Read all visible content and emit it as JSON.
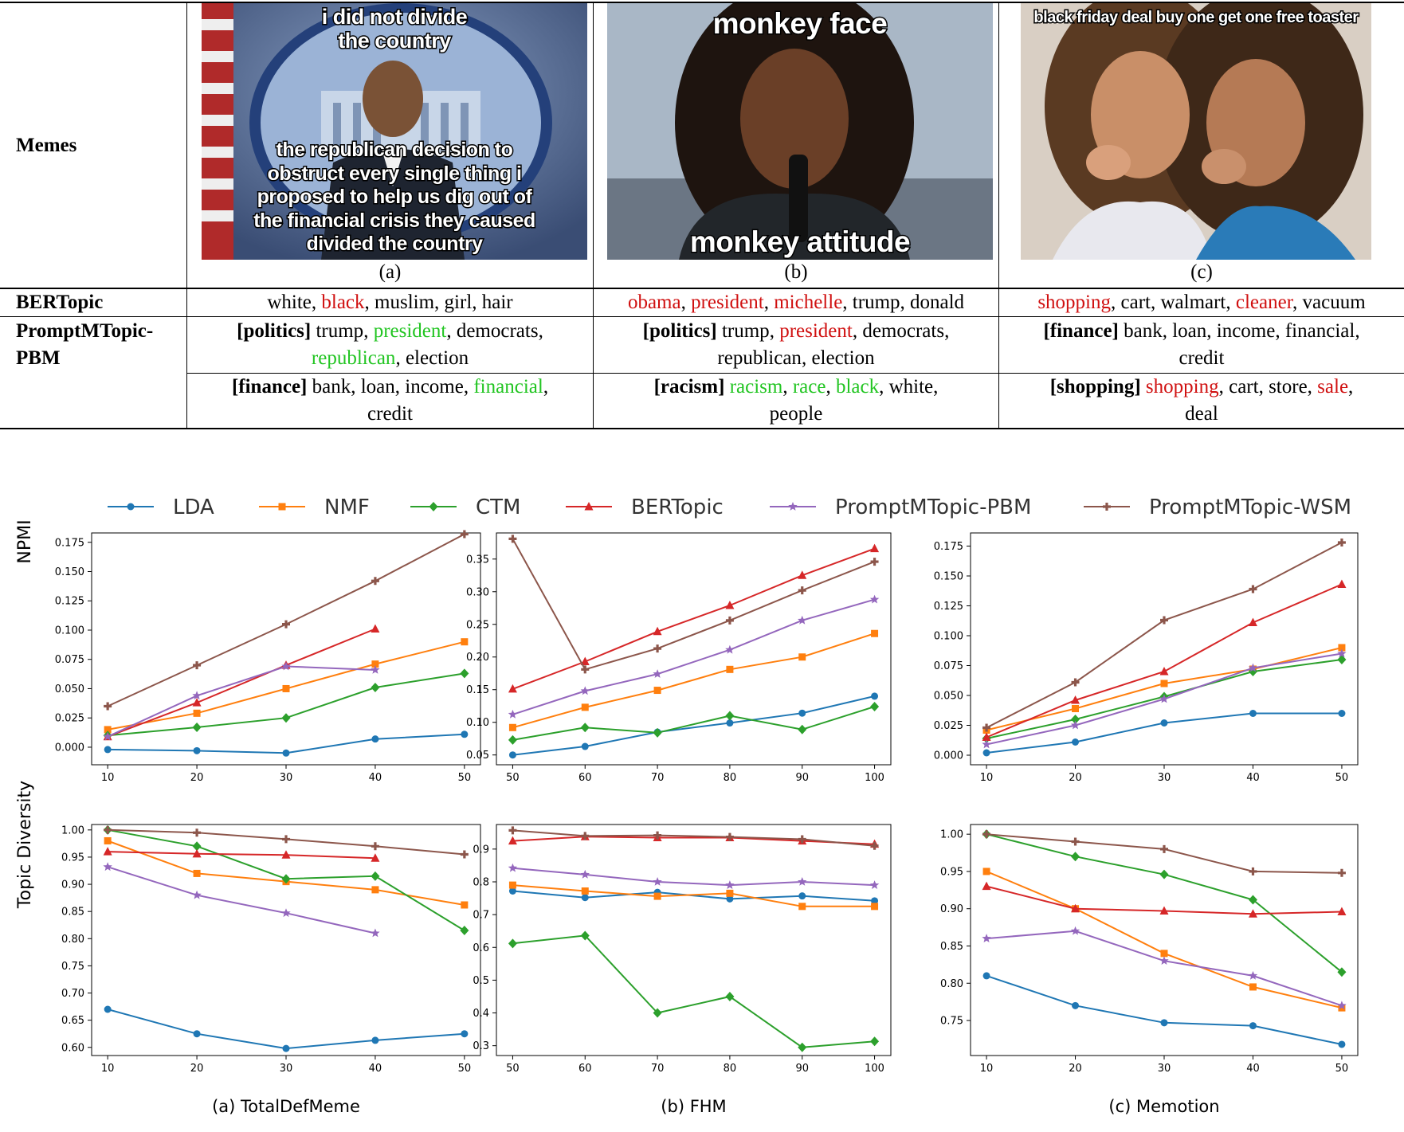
{
  "table": {
    "row_headers": {
      "memes": "Memes",
      "bertopic": "BERTopic",
      "pbm_line1": "PromptMTopic-",
      "pbm_line2": "PBM"
    },
    "memes": [
      {
        "label": "(a)",
        "caption_top": [
          "i did not divide",
          "the country"
        ],
        "caption_bottom": [
          "the republican decision to",
          "obstruct every single thing i",
          "proposed to help us dig out of",
          "the financial crisis they caused",
          "divided the country"
        ]
      },
      {
        "label": "(b)",
        "caption_top": [
          "monkey face"
        ],
        "caption_bottom": [
          "monkey attitude"
        ]
      },
      {
        "label": "(c)",
        "caption_top": [
          "black friday deal buy one get one free toaster"
        ],
        "caption_bottom": []
      }
    ],
    "bertopic": [
      [
        {
          "t": "white"
        },
        {
          "t": "black",
          "c": "red"
        },
        {
          "t": "muslim"
        },
        {
          "t": "girl"
        },
        {
          "t": "hair"
        }
      ],
      [
        {
          "t": "obama",
          "c": "red"
        },
        {
          "t": "president",
          "c": "red"
        },
        {
          "t": "michelle",
          "c": "red"
        },
        {
          "t": "trump"
        },
        {
          "t": "donald"
        }
      ],
      [
        {
          "t": "shopping",
          "c": "red"
        },
        {
          "t": "cart"
        },
        {
          "t": "walmart"
        },
        {
          "t": "cleaner",
          "c": "red"
        },
        {
          "t": "vacuum"
        }
      ]
    ],
    "pbm_row1": [
      {
        "tag": "[politics]",
        "words": [
          {
            "t": "trump"
          },
          {
            "t": "president",
            "c": "green"
          },
          {
            "t": "democrats"
          },
          {
            "t": "republican",
            "c": "green",
            "br": true
          },
          {
            "t": "election"
          }
        ]
      },
      {
        "tag": "[politics]",
        "words": [
          {
            "t": "trump"
          },
          {
            "t": "president",
            "c": "red"
          },
          {
            "t": "democrats"
          },
          {
            "t": "republican",
            "br": true
          },
          {
            "t": "election"
          }
        ]
      },
      {
        "tag": "[finance]",
        "words": [
          {
            "t": "bank"
          },
          {
            "t": "loan"
          },
          {
            "t": "income"
          },
          {
            "t": "financial"
          },
          {
            "t": "credit",
            "br": true
          }
        ]
      }
    ],
    "pbm_row2": [
      {
        "tag": "[finance]",
        "words": [
          {
            "t": "bank"
          },
          {
            "t": "loan"
          },
          {
            "t": "income"
          },
          {
            "t": "financial",
            "c": "green"
          },
          {
            "t": "credit",
            "br": true
          }
        ]
      },
      {
        "tag": "[racism]",
        "words": [
          {
            "t": "racism",
            "c": "green"
          },
          {
            "t": "race",
            "c": "green"
          },
          {
            "t": "black",
            "c": "green"
          },
          {
            "t": "white"
          },
          {
            "t": "people",
            "br": true
          }
        ]
      },
      {
        "tag": "[shopping]",
        "words": [
          {
            "t": "shopping",
            "c": "red"
          },
          {
            "t": "cart"
          },
          {
            "t": "store"
          },
          {
            "t": "sale",
            "c": "red"
          },
          {
            "t": "deal",
            "br": true
          }
        ]
      }
    ]
  },
  "chart_data": {
    "type": "line",
    "legend": {
      "placement": "top",
      "entries": [
        "LDA",
        "NMF",
        "CTM",
        "BERTopic",
        "PromptMTopic-PBM",
        "PromptMTopic-WSM"
      ]
    },
    "colors": {
      "LDA": "#1f77b4",
      "NMF": "#ff7f0e",
      "CTM": "#2ca02c",
      "BERTopic": "#d62728",
      "PromptMTopic-PBM": "#9467bd",
      "PromptMTopic-WSM": "#8c564b"
    },
    "markers": {
      "LDA": "circle",
      "NMF": "square",
      "CTM": "diamond",
      "BERTopic": "triangle",
      "PromptMTopic-PBM": "star",
      "PromptMTopic-WSM": "plus"
    },
    "ylabels": {
      "npmi": "NPMI",
      "td": "Topic Diversity"
    },
    "panels": [
      {
        "caption": "(a) TotalDefMeme",
        "x": [
          10,
          20,
          30,
          40,
          50
        ],
        "npmi": {
          "ylim": [
            -0.015,
            0.183
          ],
          "yticks": [
            "0.000",
            "0.025",
            "0.050",
            "0.075",
            "0.100",
            "0.125",
            "0.150",
            "0.175"
          ],
          "series": {
            "LDA": [
              -0.002,
              -0.003,
              -0.005,
              0.007,
              0.011
            ],
            "NMF": [
              0.015,
              0.029,
              0.05,
              0.071,
              0.09
            ],
            "CTM": [
              0.01,
              0.017,
              0.025,
              0.051,
              0.063
            ],
            "BERTopic": [
              0.009,
              0.038,
              0.07,
              0.101,
              null
            ],
            "PromptMTopic-PBM": [
              0.009,
              0.044,
              0.069,
              0.066,
              null
            ],
            "PromptMTopic-WSM": [
              0.035,
              0.07,
              0.105,
              0.142,
              0.182
            ]
          }
        },
        "td": {
          "ylim": [
            0.585,
            1.01
          ],
          "yticks": [
            "0.60",
            "0.65",
            "0.70",
            "0.75",
            "0.80",
            "0.85",
            "0.90",
            "0.95",
            "1.00"
          ],
          "series": {
            "LDA": [
              0.67,
              0.625,
              0.598,
              0.613,
              0.625
            ],
            "NMF": [
              0.98,
              0.92,
              0.905,
              0.89,
              0.862
            ],
            "CTM": [
              1.0,
              0.97,
              0.91,
              0.915,
              0.815
            ],
            "BERTopic": [
              0.96,
              0.956,
              0.954,
              0.948,
              null
            ],
            "PromptMTopic-PBM": [
              0.932,
              0.88,
              0.847,
              0.81,
              null
            ],
            "PromptMTopic-WSM": [
              1.0,
              0.995,
              0.983,
              0.97,
              0.955
            ]
          }
        }
      },
      {
        "caption": "(b) FHM",
        "x": [
          50,
          60,
          70,
          80,
          90,
          100
        ],
        "npmi": {
          "ylim": [
            0.035,
            0.39
          ],
          "yticks": [
            "0.05",
            "0.10",
            "0.15",
            "0.20",
            "0.25",
            "0.30",
            "0.35"
          ],
          "series": {
            "LDA": [
              0.05,
              0.063,
              0.085,
              0.099,
              0.114,
              0.14
            ],
            "NMF": [
              0.092,
              0.123,
              0.149,
              0.181,
              0.2,
              0.236
            ],
            "CTM": [
              0.073,
              0.092,
              0.084,
              0.11,
              0.089,
              0.124
            ],
            "BERTopic": [
              0.151,
              0.193,
              0.239,
              0.279,
              0.325,
              0.366
            ],
            "PromptMTopic-PBM": [
              0.112,
              0.148,
              0.174,
              0.211,
              0.256,
              0.288
            ],
            "PromptMTopic-WSM": [
              0.381,
              0.181,
              0.213,
              0.256,
              0.302,
              0.346
            ]
          }
        },
        "td": {
          "ylim": [
            0.27,
            0.975
          ],
          "yticks": [
            "0.3",
            "0.4",
            "0.5",
            "0.6",
            "0.7",
            "0.8",
            "0.9"
          ],
          "series": {
            "LDA": [
              0.772,
              0.752,
              0.768,
              0.748,
              0.757,
              0.742
            ],
            "NMF": [
              0.79,
              0.772,
              0.756,
              0.765,
              0.725,
              0.725
            ],
            "CTM": [
              0.612,
              0.636,
              0.4,
              0.45,
              0.295,
              0.313
            ],
            "BERTopic": [
              0.925,
              0.938,
              0.935,
              0.935,
              0.925,
              0.915
            ],
            "PromptMTopic-PBM": [
              0.842,
              0.822,
              0.8,
              0.79,
              0.8,
              0.79
            ],
            "PromptMTopic-WSM": [
              0.957,
              0.94,
              0.942,
              0.937,
              0.93,
              0.91
            ]
          }
        }
      },
      {
        "caption": "(c) Memotion",
        "x": [
          10,
          20,
          30,
          40,
          50
        ],
        "npmi": {
          "ylim": [
            -0.008,
            0.186
          ],
          "yticks": [
            "0.000",
            "0.025",
            "0.050",
            "0.075",
            "0.100",
            "0.125",
            "0.150",
            "0.175"
          ],
          "series": {
            "LDA": [
              0.002,
              0.011,
              0.027,
              0.035,
              0.035
            ],
            "NMF": [
              0.021,
              0.039,
              0.06,
              0.072,
              0.09
            ],
            "CTM": [
              0.014,
              0.03,
              0.049,
              0.07,
              0.08
            ],
            "BERTopic": [
              0.015,
              0.046,
              0.07,
              0.111,
              0.143
            ],
            "PromptMTopic-PBM": [
              0.009,
              0.025,
              0.047,
              0.073,
              0.085
            ],
            "PromptMTopic-WSM": [
              0.023,
              0.061,
              0.113,
              0.139,
              0.178
            ]
          }
        },
        "td": {
          "ylim": [
            0.703,
            1.013
          ],
          "yticks": [
            "0.75",
            "0.80",
            "0.85",
            "0.90",
            "0.95",
            "1.00"
          ],
          "series": {
            "LDA": [
              0.81,
              0.77,
              0.747,
              0.743,
              0.718
            ],
            "NMF": [
              0.95,
              0.9,
              0.84,
              0.795,
              0.767
            ],
            "CTM": [
              1.0,
              0.97,
              0.946,
              0.912,
              0.815
            ],
            "BERTopic": [
              0.93,
              0.9,
              0.897,
              0.893,
              0.896
            ],
            "PromptMTopic-PBM": [
              0.86,
              0.87,
              0.83,
              0.81,
              0.77
            ],
            "PromptMTopic-WSM": [
              1.0,
              0.99,
              0.98,
              0.95,
              0.948
            ]
          }
        }
      }
    ]
  }
}
